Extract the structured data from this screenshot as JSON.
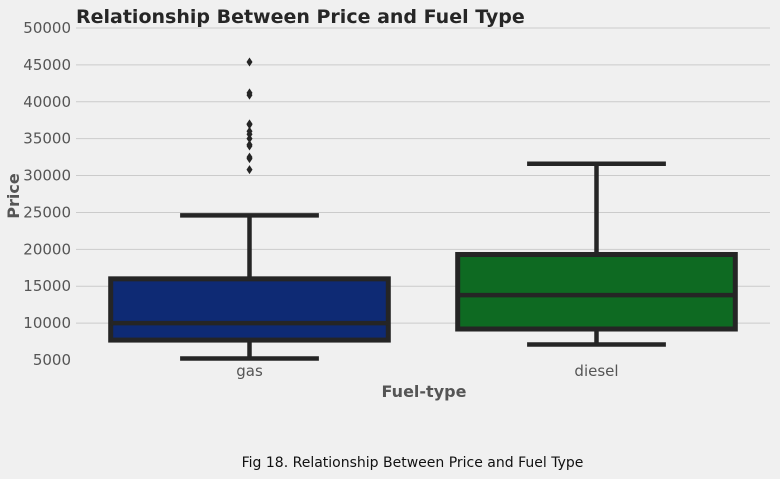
{
  "caption": "Fig 18. Relationship Between Price and Fuel Type",
  "chart_data": {
    "type": "box",
    "title": "Relationship Between Price and Fuel Type",
    "xlabel": "Fuel-type",
    "ylabel": "Price",
    "ylim": [
      5000,
      50000
    ],
    "yticks": [
      5000,
      10000,
      15000,
      20000,
      25000,
      30000,
      35000,
      40000,
      45000,
      50000
    ],
    "grid": true,
    "categories": [
      "gas",
      "diesel"
    ],
    "boxes": [
      {
        "category": "gas",
        "whisker_low": 5200,
        "q1": 7700,
        "median": 10000,
        "q3": 16000,
        "whisker_high": 24600,
        "outliers": [
          30800,
          32300,
          32500,
          34000,
          34200,
          35000,
          35600,
          36000,
          36900,
          37000,
          40900,
          41200,
          45400
        ],
        "color": "#0e2a74"
      },
      {
        "category": "diesel",
        "whisker_low": 7100,
        "q1": 9200,
        "median": 13800,
        "q3": 19300,
        "whisker_high": 31600,
        "outliers": [],
        "color": "#0e6a22"
      }
    ],
    "colors": {
      "background": "#f0f0f0",
      "grid": "#cbcbcb",
      "edge": "#252525"
    }
  }
}
